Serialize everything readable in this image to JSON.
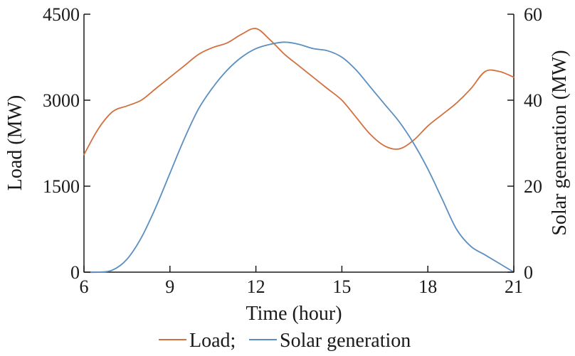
{
  "chart_data": {
    "type": "line",
    "x_axis": {
      "label": "Time (hour)",
      "range": [
        6,
        21
      ],
      "ticks": [
        6,
        9,
        12,
        15,
        18,
        21
      ],
      "tick_labels": [
        "6",
        "9",
        "12",
        "15",
        "18",
        "21"
      ]
    },
    "y_axis_left": {
      "label": "Load (MW)",
      "range": [
        0,
        4500
      ],
      "ticks": [
        0,
        1500,
        3000,
        4500
      ],
      "tick_labels": [
        "0",
        "1500",
        "3000",
        "4500"
      ]
    },
    "y_axis_right": {
      "label": "Solar generation (MW)",
      "range": [
        0,
        60
      ],
      "ticks": [
        0,
        20,
        40,
        60
      ],
      "tick_labels": [
        "0",
        "20",
        "40",
        "60"
      ]
    },
    "grid": false,
    "legend_placement": "bottom",
    "legend_separator": ";",
    "series": [
      {
        "name": "Load",
        "axis": "left",
        "color": "#d2703f",
        "x": [
          6,
          6.5,
          7,
          7.5,
          8,
          8.5,
          9,
          9.5,
          10,
          10.5,
          11,
          11.5,
          12,
          12.5,
          13,
          13.5,
          14,
          14.5,
          15,
          15.5,
          16,
          16.5,
          17,
          17.5,
          18,
          18.5,
          19,
          19.5,
          20,
          20.5,
          21
        ],
        "y": [
          2050,
          2500,
          2800,
          2900,
          3000,
          3200,
          3400,
          3600,
          3800,
          3920,
          4000,
          4150,
          4250,
          4050,
          3800,
          3600,
          3400,
          3200,
          3000,
          2700,
          2400,
          2200,
          2150,
          2300,
          2550,
          2750,
          2950,
          3200,
          3500,
          3500,
          3400
        ]
      },
      {
        "name": "Solar generation",
        "axis": "right",
        "color": "#5b8fbf",
        "x": [
          6,
          6.5,
          7,
          7.5,
          8,
          8.5,
          9,
          9.5,
          10,
          10.5,
          11,
          11.5,
          12,
          12.5,
          13,
          13.5,
          14,
          14.5,
          15,
          15.5,
          16,
          16.5,
          17,
          17.5,
          18,
          18.5,
          19,
          19.5,
          20,
          20.5,
          21
        ],
        "y": [
          0,
          0,
          0.5,
          3,
          8,
          15,
          23,
          31,
          38,
          43,
          47,
          50,
          52,
          53,
          53.5,
          53,
          52,
          51.5,
          50,
          47,
          43,
          39,
          35,
          30,
          24,
          17,
          10,
          6,
          4,
          2,
          0
        ]
      }
    ]
  }
}
